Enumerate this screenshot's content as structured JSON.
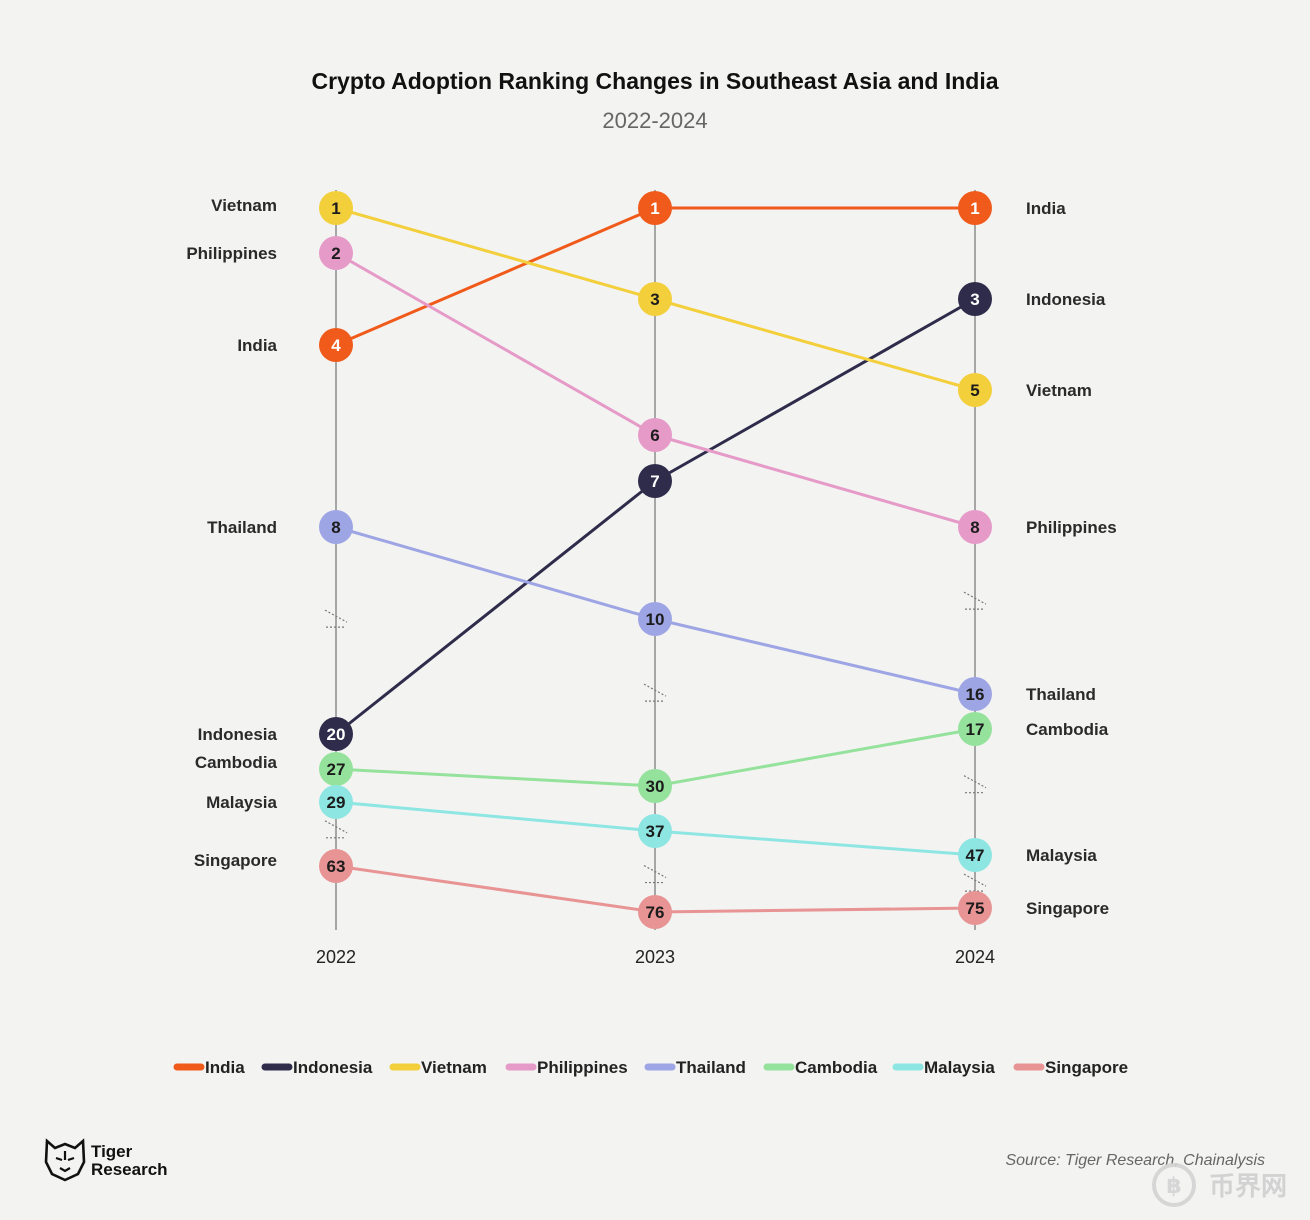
{
  "chart_data": {
    "type": "line",
    "title": "Crypto Adoption Ranking Changes in Southeast Asia and India",
    "subtitle": "2022-2024",
    "x": [
      "2022",
      "2023",
      "2024"
    ],
    "y_meaning": "rank (1 = highest adoption); axis shown with breaks",
    "series": [
      {
        "name": "India",
        "color": "#f05a1a",
        "values": [
          4,
          1,
          1
        ]
      },
      {
        "name": "Indonesia",
        "color": "#2e2c4a",
        "values": [
          20,
          7,
          3
        ]
      },
      {
        "name": "Vietnam",
        "color": "#f3cf3b",
        "values": [
          1,
          3,
          5
        ]
      },
      {
        "name": "Philippines",
        "color": "#e59ac8",
        "values": [
          2,
          6,
          8
        ]
      },
      {
        "name": "Thailand",
        "color": "#9ea5e4",
        "values": [
          8,
          10,
          16
        ]
      },
      {
        "name": "Cambodia",
        "color": "#95e29c",
        "values": [
          27,
          30,
          17
        ]
      },
      {
        "name": "Malaysia",
        "color": "#8de6e2",
        "values": [
          29,
          37,
          47
        ]
      },
      {
        "name": "Singapore",
        "color": "#e89494",
        "values": [
          63,
          76,
          75
        ]
      }
    ],
    "left_labels": [
      "Vietnam",
      "Philippines",
      "India",
      "Thailand",
      "Indonesia",
      "Cambodia",
      "Malaysia",
      "Singapore"
    ],
    "right_labels": [
      "India",
      "Indonesia",
      "Vietnam",
      "Philippines",
      "Thailand",
      "Cambodia",
      "Malaysia",
      "Singapore"
    ],
    "legend": [
      "India",
      "Indonesia",
      "Vietnam",
      "Philippines",
      "Thailand",
      "Cambodia",
      "Malaysia",
      "Singapore"
    ]
  },
  "source": "Source: Tiger Research, Chainalysis",
  "brand": {
    "line1": "Tiger",
    "line2": "Research",
    "icon": "tiger-logo-icon"
  },
  "watermark": "币界网"
}
